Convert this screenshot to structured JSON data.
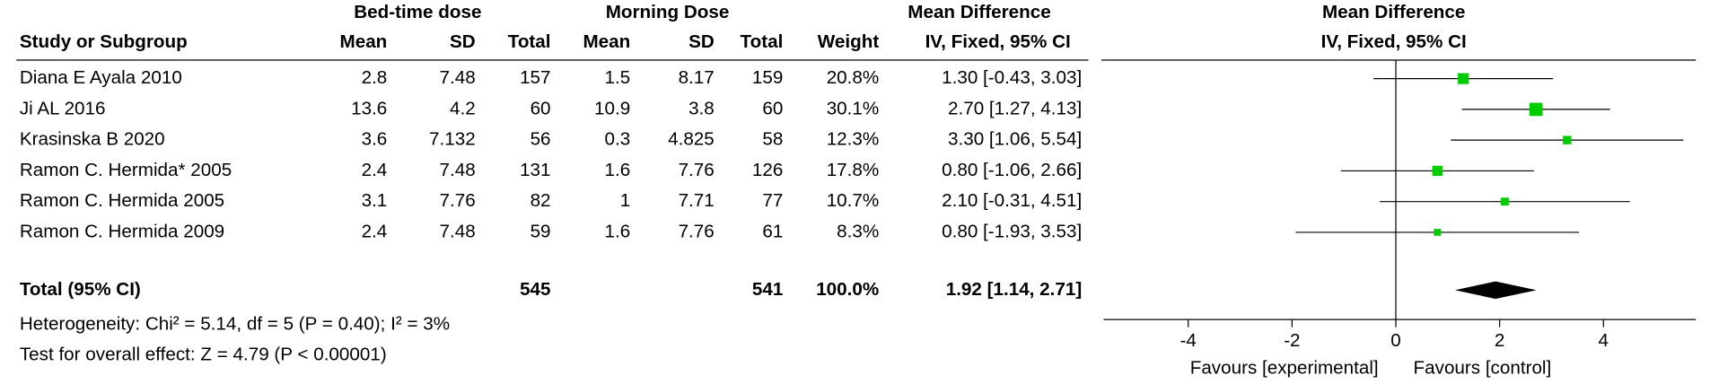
{
  "chart_data": {
    "type": "forest",
    "group_headers": [
      "Bed-time dose",
      "Morning Dose",
      "Mean Difference"
    ],
    "columns": [
      "Study or Subgroup",
      "Mean",
      "SD",
      "Total",
      "Mean",
      "SD",
      "Total",
      "Weight",
      "IV, Fixed, 95% CI"
    ],
    "plot_title": "Mean Difference",
    "plot_subtitle": "IV, Fixed, 95% CI",
    "studies": [
      {
        "name": "Diana E Ayala 2010",
        "mean1": 2.8,
        "sd1": 7.48,
        "n1": 157,
        "mean2": 1.5,
        "sd2": 8.17,
        "n2": 159,
        "weight": 20.8,
        "weight_label": "20.8%",
        "md": 1.3,
        "ci_low": -0.43,
        "ci_high": 3.03,
        "ci_label": "1.30 [-0.43, 3.03]"
      },
      {
        "name": "Ji AL 2016",
        "mean1": 13.6,
        "sd1": 4.2,
        "n1": 60,
        "mean2": 10.9,
        "sd2": 3.8,
        "n2": 60,
        "weight": 30.1,
        "weight_label": "30.1%",
        "md": 2.7,
        "ci_low": 1.27,
        "ci_high": 4.13,
        "ci_label": "2.70 [1.27, 4.13]"
      },
      {
        "name": "Krasinska B 2020",
        "mean1": 3.6,
        "sd1": 7.132,
        "n1": 56,
        "mean2": 0.3,
        "sd2": 4.825,
        "n2": 58,
        "weight": 12.3,
        "weight_label": "12.3%",
        "md": 3.3,
        "ci_low": 1.06,
        "ci_high": 5.54,
        "ci_label": "3.30 [1.06, 5.54]"
      },
      {
        "name": "Ramon C. Hermida* 2005",
        "mean1": 2.4,
        "sd1": 7.48,
        "n1": 131,
        "mean2": 1.6,
        "sd2": 7.76,
        "n2": 126,
        "weight": 17.8,
        "weight_label": "17.8%",
        "md": 0.8,
        "ci_low": -1.06,
        "ci_high": 2.66,
        "ci_label": "0.80 [-1.06, 2.66]"
      },
      {
        "name": "Ramon C. Hermida 2005",
        "mean1": 3.1,
        "sd1": 7.76,
        "n1": 82,
        "mean2": 1,
        "sd2": 7.71,
        "n2": 77,
        "weight": 10.7,
        "weight_label": "10.7%",
        "md": 2.1,
        "ci_low": -0.31,
        "ci_high": 4.51,
        "ci_label": "2.10 [-0.31, 4.51]"
      },
      {
        "name": "Ramon C. Hermida 2009",
        "mean1": 2.4,
        "sd1": 7.48,
        "n1": 59,
        "mean2": 1.6,
        "sd2": 7.76,
        "n2": 61,
        "weight": 8.3,
        "weight_label": "8.3%",
        "md": 0.8,
        "ci_low": -1.93,
        "ci_high": 3.53,
        "ci_label": "0.80 [-1.93, 3.53]"
      }
    ],
    "total": {
      "label": "Total (95% CI)",
      "n1": 545,
      "n2": 541,
      "weight": 100.0,
      "weight_label": "100.0%",
      "md": 1.92,
      "ci_low": 1.14,
      "ci_high": 2.71,
      "ci_label": "1.92 [1.14, 2.71]"
    },
    "heterogeneity": "Heterogeneity: Chi² = 5.14, df = 5 (P = 0.40); I² = 3%",
    "overall_effect": "Test for overall effect: Z = 4.79 (P < 0.00001)",
    "xlim": [
      -5.63,
      5.78
    ],
    "xticks": [
      -4,
      -2,
      0,
      2,
      4
    ],
    "favours_left": "Favours [experimental]",
    "favours_right": "Favours [control]",
    "marker_color": "#00cc00",
    "diamond_color": "#000000"
  }
}
